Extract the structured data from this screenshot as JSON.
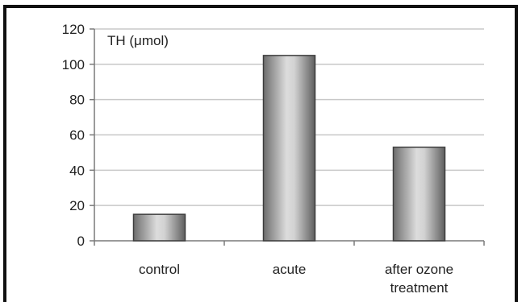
{
  "chart_data": {
    "type": "bar",
    "title": "",
    "ylabel": "TH (μmol)",
    "xlabel": "",
    "categories": [
      [
        "control"
      ],
      [
        "acute"
      ],
      [
        "after ozone",
        "treatment"
      ]
    ],
    "values": [
      15,
      105,
      53
    ],
    "ylim": [
      0,
      120
    ],
    "yticks": [
      0,
      20,
      40,
      60,
      80,
      100,
      120
    ],
    "grid": true,
    "bar_color": "#8c8c8c",
    "grid_color": "#c8c8c8",
    "axis_color": "#7a7a7a"
  }
}
